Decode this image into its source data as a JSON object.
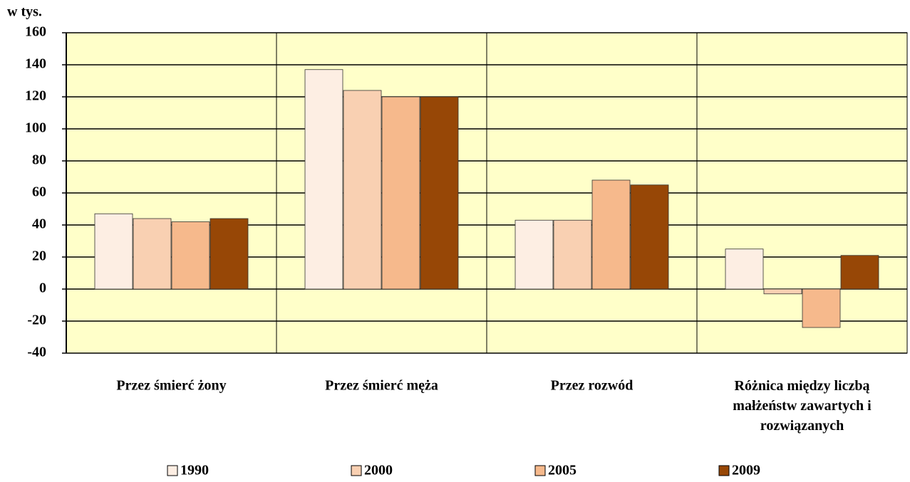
{
  "chart_data": {
    "type": "bar",
    "y_label": "w tys.",
    "categories": [
      "Przez śmierć żony",
      "Przez śmierć męża",
      "Przez rozwód",
      "Różnica między liczbą małżeństw zawartych i rozwiązanych"
    ],
    "series": [
      {
        "name": "1990",
        "color": "#fdeee3",
        "values": [
          47,
          137,
          43,
          25
        ]
      },
      {
        "name": "2000",
        "color": "#f9d0b2",
        "values": [
          44,
          124,
          43,
          -3
        ]
      },
      {
        "name": "2005",
        "color": "#f6b98c",
        "values": [
          42,
          120,
          68,
          -24
        ]
      },
      {
        "name": "2009",
        "color": "#974706",
        "values": [
          44,
          120,
          65,
          21
        ]
      }
    ],
    "ylim": [
      -40,
      160
    ],
    "yticks": [
      -40,
      -20,
      0,
      20,
      40,
      60,
      80,
      100,
      120,
      140,
      160
    ],
    "grid": true,
    "legend": "bottom"
  }
}
